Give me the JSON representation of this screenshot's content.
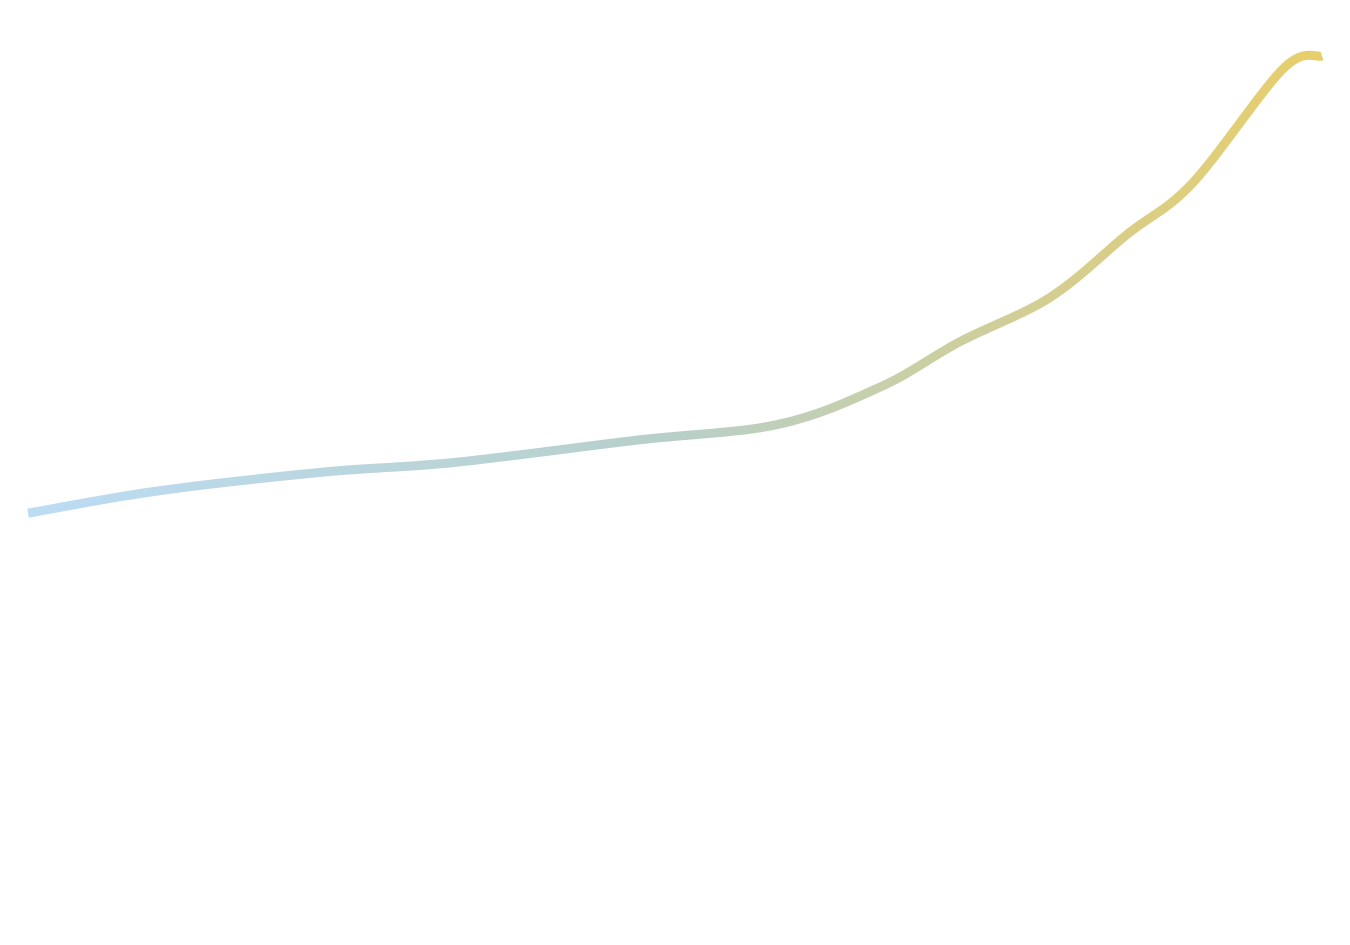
{
  "chart_data": {
    "type": "line",
    "title": "",
    "xlabel": "",
    "ylabel": "",
    "grid": false,
    "legend": "none",
    "colors": {
      "gradient_start": "#bcdcf4",
      "gradient_mid": "#b8cfc8",
      "gradient_end": "#e8ce6a",
      "background": "#ffffff"
    },
    "xlim": [
      0,
      100
    ],
    "ylim": [
      0,
      100
    ],
    "series": [
      {
        "x": [
          0,
          10,
          23,
          33,
          47,
          58,
          66,
          72,
          79,
          85,
          90,
          97,
          100
        ],
        "y": [
          28.0,
          31.5,
          34.5,
          36.0,
          39.5,
          42.0,
          48.0,
          55.0,
          62.0,
          72.0,
          80.0,
          98.0,
          100.0
        ]
      }
    ]
  }
}
